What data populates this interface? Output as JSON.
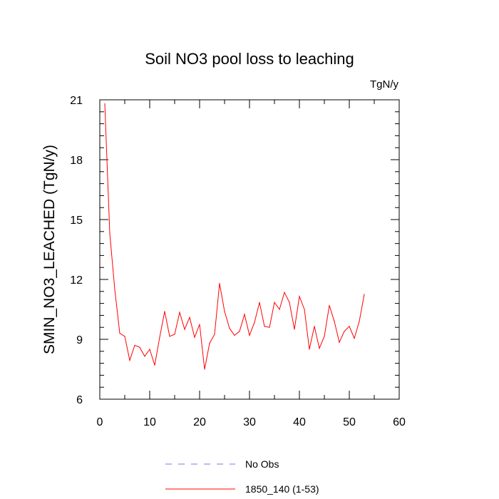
{
  "chart_data": {
    "type": "line",
    "title": "Soil NO3 pool loss to leaching",
    "units_label": "TgN/y",
    "xlabel": "",
    "ylabel": "SMIN_NO3_LEACHED  (TgN/y)",
    "xlim": [
      0,
      60
    ],
    "ylim": [
      6,
      21
    ],
    "x_ticks": [
      0,
      10,
      20,
      30,
      40,
      50,
      60
    ],
    "y_ticks": [
      6,
      9,
      12,
      15,
      18,
      21
    ],
    "x_tick_labels": [
      "0",
      "10",
      "20",
      "30",
      "40",
      "50",
      "60"
    ],
    "y_tick_labels": [
      "6",
      "9",
      "12",
      "15",
      "18",
      "21"
    ],
    "grid": false,
    "legend_position": "bottom",
    "series": [
      {
        "name": "No Obs",
        "color": "#7777ee",
        "dash": "dashed",
        "x": [],
        "values": []
      },
      {
        "name": "1850_140 (1-53)",
        "color": "#ff0000",
        "dash": "solid",
        "x": [
          1,
          2,
          3,
          4,
          5,
          6,
          7,
          8,
          9,
          10,
          11,
          12,
          13,
          14,
          15,
          16,
          17,
          18,
          19,
          20,
          21,
          22,
          23,
          24,
          25,
          26,
          27,
          28,
          29,
          30,
          31,
          32,
          33,
          34,
          35,
          36,
          37,
          38,
          39,
          40,
          41,
          42,
          43,
          44,
          45,
          46,
          47,
          48,
          49,
          50,
          51,
          52,
          53
        ],
        "values": [
          20.8,
          14.3,
          11.5,
          9.3,
          9.15,
          7.95,
          8.7,
          8.6,
          8.15,
          8.5,
          7.7,
          9.1,
          10.4,
          9.15,
          9.25,
          10.35,
          9.5,
          10.1,
          9.1,
          9.75,
          7.5,
          8.8,
          9.25,
          11.8,
          10.4,
          9.55,
          9.2,
          9.4,
          10.25,
          9.2,
          9.85,
          10.85,
          9.65,
          9.6,
          10.85,
          10.5,
          11.35,
          10.85,
          9.5,
          11.15,
          10.5,
          8.5,
          9.65,
          8.55,
          9.15,
          10.7,
          9.9,
          8.85,
          9.4,
          9.65,
          9.05,
          9.9,
          11.25
        ]
      }
    ]
  }
}
